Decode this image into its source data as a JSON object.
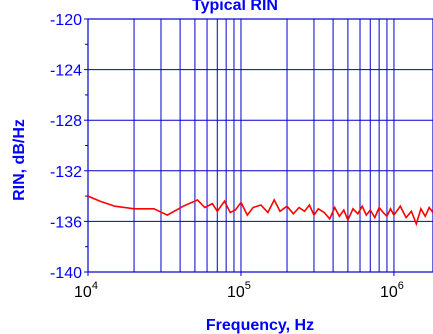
{
  "chart_data": {
    "type": "line",
    "title": "Typical RIN",
    "xlabel": "Frequency, Hz",
    "ylabel": "RIN, dB/Hz",
    "xscale": "log",
    "xlim": [
      10000,
      1800000
    ],
    "ylim": [
      -140,
      -120
    ],
    "yticks": [
      "-120",
      "-124",
      "-128",
      "-132",
      "-136",
      "-140"
    ],
    "xticks": [
      {
        "base": "10",
        "exp": "4"
      },
      {
        "base": "10",
        "exp": "5"
      },
      {
        "base": "10",
        "exp": "6"
      }
    ],
    "grid": true,
    "colors": {
      "axis_text": "#0000ff",
      "grid": "#0000cc",
      "series": "#ff0000"
    },
    "series": [
      {
        "x": [
          10000,
          12000,
          15000,
          20000,
          27000,
          33000,
          42000,
          52000,
          58000,
          65000,
          70000,
          78000,
          85000,
          92000,
          100000,
          110000,
          120000,
          135000,
          150000,
          165000,
          180000,
          200000,
          220000,
          240000,
          260000,
          280000,
          300000,
          320000,
          350000,
          380000,
          410000,
          440000,
          470000,
          500000,
          540000,
          580000,
          620000,
          660000,
          700000,
          750000,
          800000,
          850000,
          900000,
          950000,
          1000000,
          1100000,
          1200000,
          1300000,
          1400000,
          1500000,
          1600000,
          1700000,
          1800000
        ],
        "values": [
          -134.0,
          -134.4,
          -134.8,
          -135.0,
          -135.0,
          -135.5,
          -134.8,
          -134.3,
          -134.9,
          -134.6,
          -135.2,
          -134.4,
          -135.3,
          -135.1,
          -134.5,
          -135.5,
          -134.9,
          -134.7,
          -135.3,
          -134.3,
          -135.2,
          -134.8,
          -135.4,
          -134.9,
          -135.2,
          -134.7,
          -135.5,
          -135.0,
          -135.3,
          -135.8,
          -134.9,
          -135.6,
          -135.1,
          -135.9,
          -135.0,
          -135.4,
          -134.8,
          -135.5,
          -135.1,
          -135.7,
          -134.9,
          -135.3,
          -135.6,
          -135.0,
          -135.5,
          -134.8,
          -135.7,
          -135.2,
          -136.2,
          -135.0,
          -135.6,
          -134.9,
          -135.3
        ]
      }
    ]
  }
}
